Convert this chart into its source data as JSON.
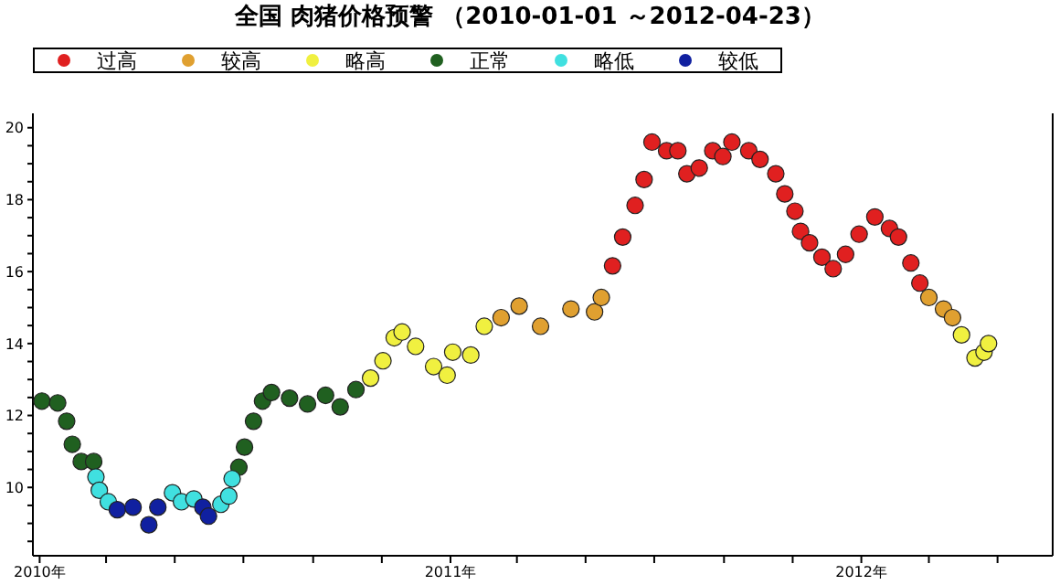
{
  "chart_data": {
    "type": "scatter",
    "title": "全国 肉猪价格预警 （2010-01-01 ～2012-04-23）",
    "legend": "top",
    "marker": "circle",
    "grid": false,
    "xlim": [
      "2009-12-26",
      "2012-06-19"
    ],
    "xticks": [
      {
        "value": "2010-01-01",
        "label": "2010年"
      },
      {
        "value": "2010-03-01",
        "label": null
      },
      {
        "value": "2010-05-01",
        "label": null
      },
      {
        "value": "2010-07-01",
        "label": null
      },
      {
        "value": "2010-09-01",
        "label": null
      },
      {
        "value": "2010-11-01",
        "label": null
      },
      {
        "value": "2011-01-01",
        "label": "2011年"
      },
      {
        "value": "2011-03-01",
        "label": null
      },
      {
        "value": "2011-05-01",
        "label": null
      },
      {
        "value": "2011-07-01",
        "label": null
      },
      {
        "value": "2011-09-01",
        "label": null
      },
      {
        "value": "2011-11-01",
        "label": null
      },
      {
        "value": "2012-01-01",
        "label": "2012年"
      },
      {
        "value": "2012-03-01",
        "label": null
      },
      {
        "value": "2012-05-01",
        "label": null
      }
    ],
    "ylim": [
      8.1,
      20.4
    ],
    "yticks": [
      {
        "value": 8.5,
        "label": null
      },
      {
        "value": 9,
        "label": null
      },
      {
        "value": 9.5,
        "label": null
      },
      10,
      {
        "value": 10.5,
        "label": null
      },
      {
        "value": 11,
        "label": null
      },
      {
        "value": 11.5,
        "label": null
      },
      12,
      {
        "value": 12.5,
        "label": null
      },
      {
        "value": 13,
        "label": null
      },
      {
        "value": 13.5,
        "label": null
      },
      14,
      {
        "value": 14.5,
        "label": null
      },
      {
        "value": 15,
        "label": null
      },
      {
        "value": 15.5,
        "label": null
      },
      16,
      {
        "value": 16.5,
        "label": null
      },
      {
        "value": 17,
        "label": null
      },
      {
        "value": 17.5,
        "label": null
      },
      18,
      {
        "value": 18.5,
        "label": null
      },
      {
        "value": 19,
        "label": null
      },
      {
        "value": 19.5,
        "label": null
      },
      20
    ],
    "series": [
      {
        "name": "过高",
        "color": "#e02020",
        "x": [
          "2011-05-25",
          "2011-06-03",
          "2011-06-14",
          "2011-06-22",
          "2011-06-29",
          "2011-07-12",
          "2011-07-22",
          "2011-07-30",
          "2011-08-10",
          "2011-08-22",
          "2011-08-31",
          "2011-09-08",
          "2011-09-23",
          "2011-10-03",
          "2011-10-17",
          "2011-10-25",
          "2011-11-03",
          "2011-11-08",
          "2011-11-16",
          "2011-11-27",
          "2011-12-07",
          "2011-12-18",
          "2011-12-30",
          "2012-01-13",
          "2012-01-26",
          "2012-02-03",
          "2012-02-14",
          "2012-02-22"
        ],
        "values": [
          16.16,
          16.96,
          17.84,
          18.56,
          19.6,
          19.36,
          19.36,
          18.72,
          18.88,
          19.36,
          19.2,
          19.6,
          19.36,
          19.12,
          18.72,
          18.16,
          17.68,
          17.12,
          16.8,
          16.4,
          16.08,
          16.48,
          17.04,
          17.52,
          17.2,
          16.96,
          16.24,
          15.68
        ]
      },
      {
        "name": "较高",
        "color": "#e0a030",
        "x": [
          "2011-02-15",
          "2011-03-03",
          "2011-03-22",
          "2011-04-18",
          "2011-05-09",
          "2011-05-15",
          "2012-03-01",
          "2012-03-14",
          "2012-03-22"
        ],
        "values": [
          14.72,
          15.04,
          14.48,
          14.96,
          14.88,
          15.28,
          15.28,
          14.96,
          14.72
        ]
      },
      {
        "name": "略高",
        "color": "#f0f040",
        "x": [
          "2010-10-22",
          "2010-11-02",
          "2010-11-12",
          "2010-11-19",
          "2010-12-01",
          "2010-12-17",
          "2010-12-29",
          "2011-01-03",
          "2011-01-19",
          "2011-01-31",
          "2012-03-30",
          "2012-04-11",
          "2012-04-19",
          "2012-04-23"
        ],
        "values": [
          13.04,
          13.52,
          14.16,
          14.32,
          13.92,
          13.36,
          13.12,
          13.76,
          13.68,
          14.48,
          14.24,
          13.6,
          13.76,
          14.0
        ]
      },
      {
        "name": "正常",
        "color": "#206020",
        "x": [
          "2010-01-03",
          "2010-01-17",
          "2010-01-25",
          "2010-01-30",
          "2010-02-07",
          "2010-02-18",
          "2010-06-27",
          "2010-07-02",
          "2010-07-10",
          "2010-07-18",
          "2010-07-26",
          "2010-08-11",
          "2010-08-27",
          "2010-09-12",
          "2010-09-25",
          "2010-10-09"
        ],
        "values": [
          12.4,
          12.35,
          11.84,
          11.2,
          10.72,
          10.72,
          10.56,
          11.12,
          11.84,
          12.4,
          12.64,
          12.48,
          12.32,
          12.56,
          12.24,
          12.72
        ]
      },
      {
        "name": "略低",
        "color": "#40e0e0",
        "x": [
          "2010-02-20",
          "2010-02-23",
          "2010-03-03",
          "2010-04-29",
          "2010-05-07",
          "2010-05-18",
          "2010-06-11",
          "2010-06-18",
          "2010-06-21"
        ],
        "values": [
          10.29,
          9.92,
          9.6,
          9.85,
          9.6,
          9.68,
          9.53,
          9.76,
          10.24
        ]
      },
      {
        "name": "较低",
        "color": "#1020a0",
        "x": [
          "2010-03-11",
          "2010-03-25",
          "2010-04-08",
          "2010-04-16",
          "2010-05-26",
          "2010-05-31"
        ],
        "values": [
          9.38,
          9.45,
          8.96,
          9.45,
          9.45,
          9.2
        ]
      }
    ]
  }
}
